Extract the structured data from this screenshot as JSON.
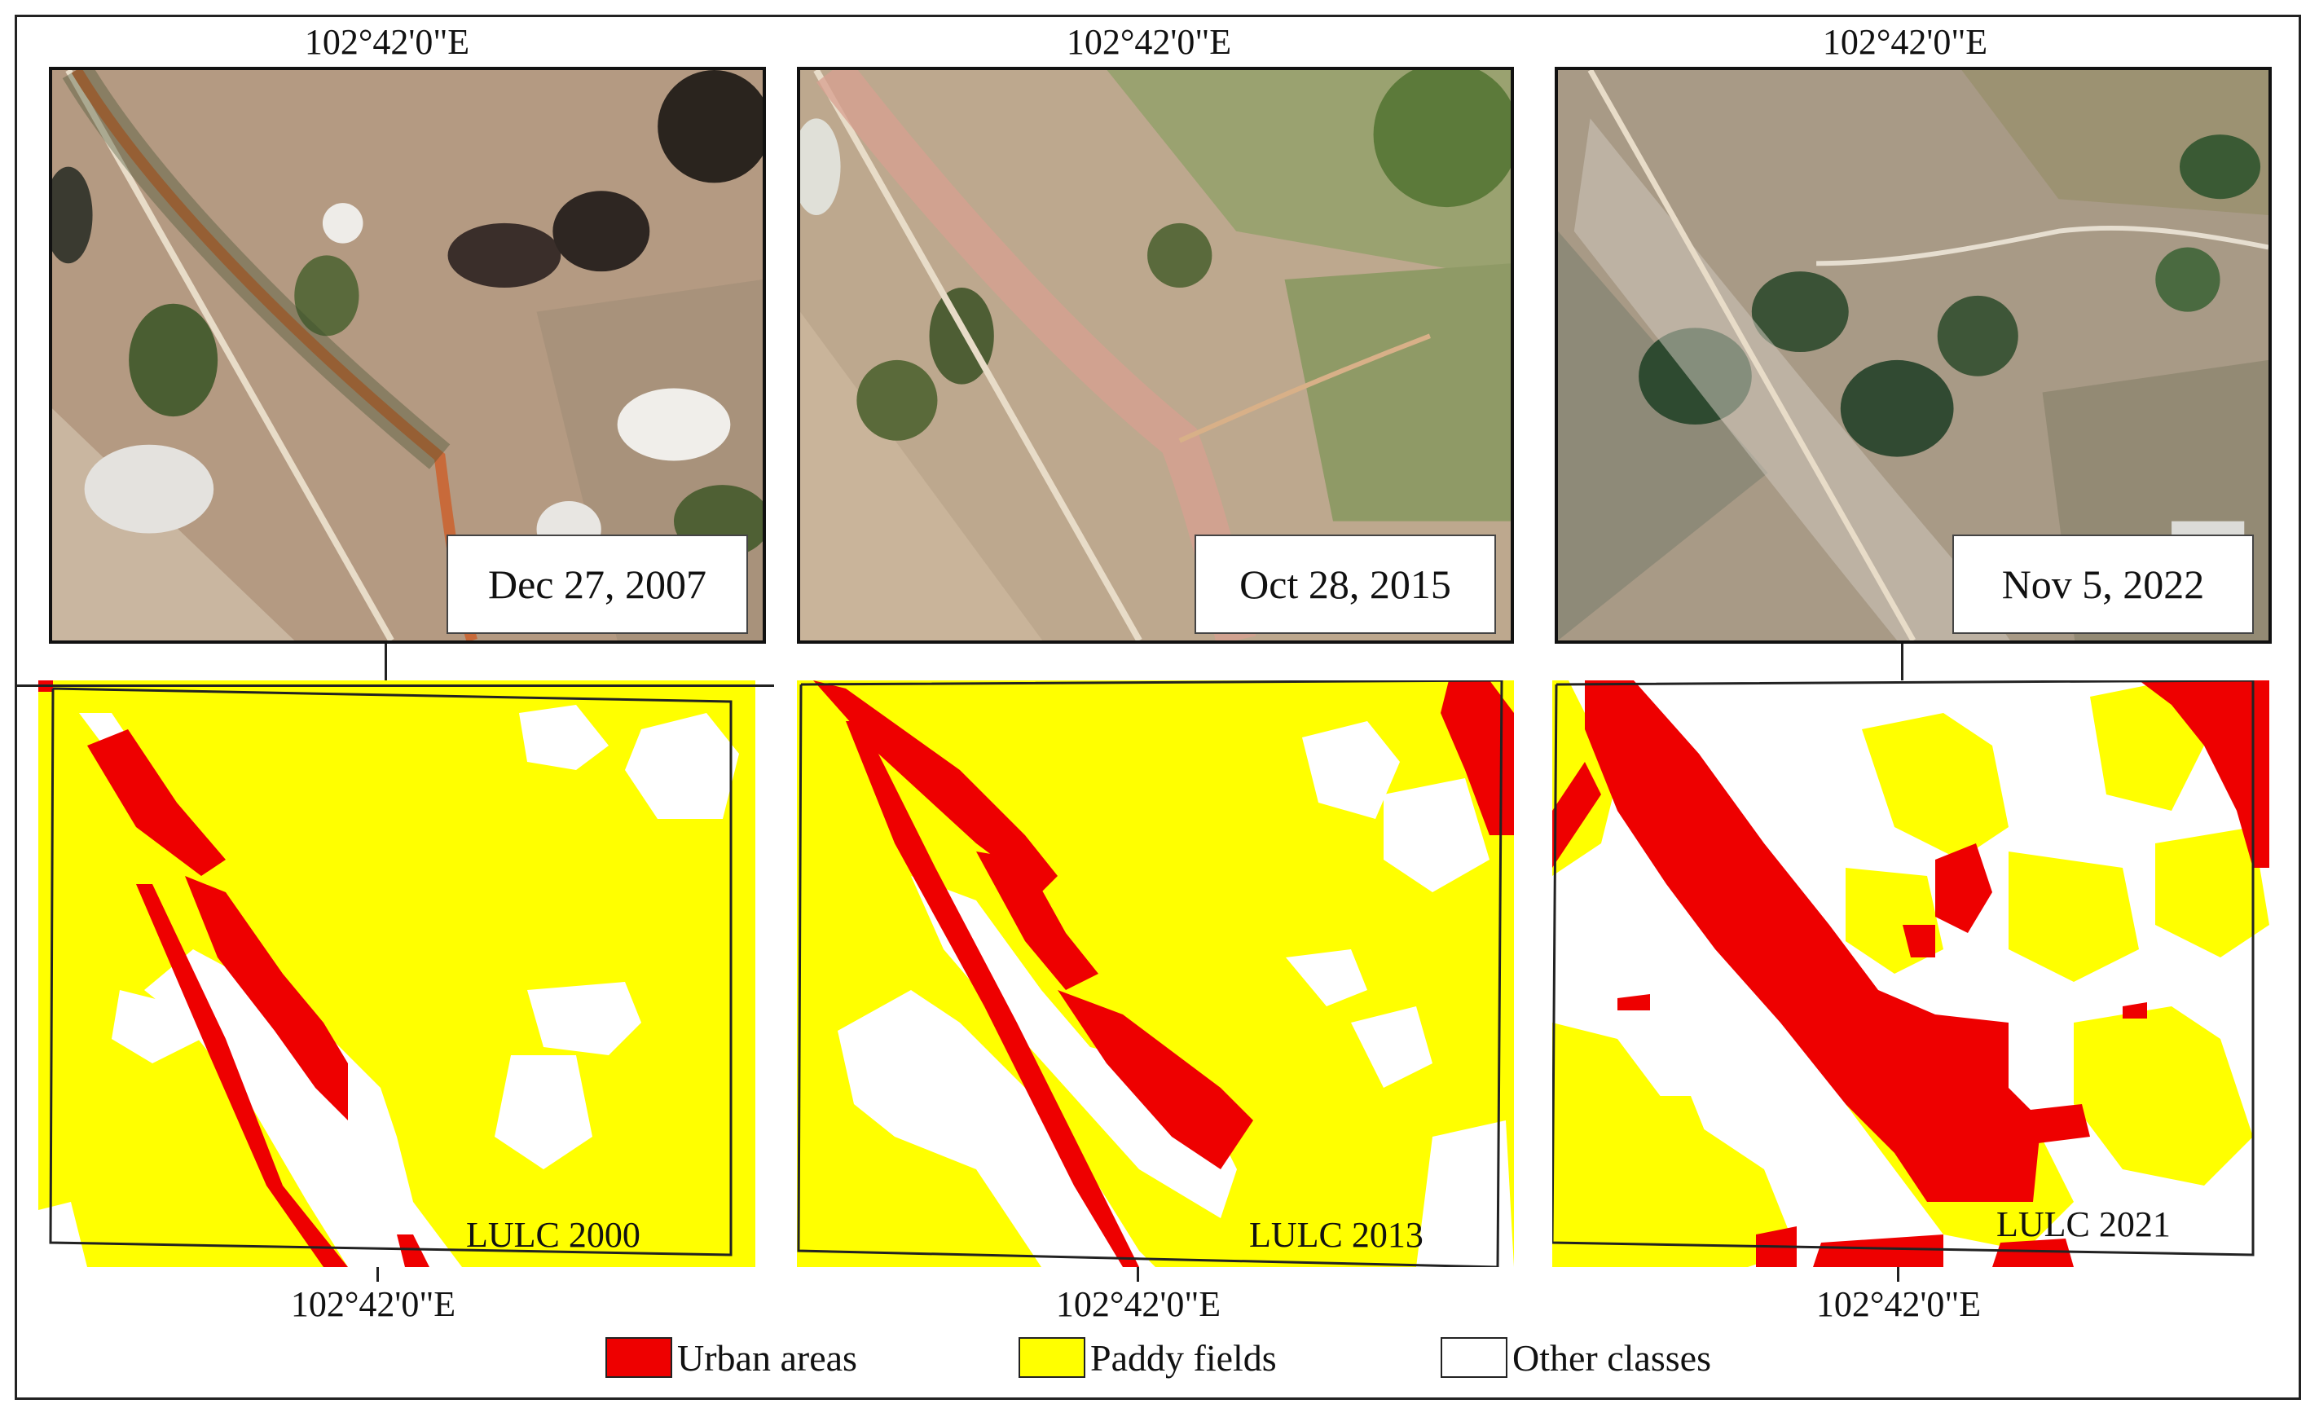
{
  "colors": {
    "urban": "#ee0000",
    "paddy": "#ffff00",
    "other": "#ffffff"
  },
  "panels": [
    {
      "coord_top": "102°42'0\"E",
      "date": "Dec 27, 2007",
      "lulc": "LULC 2000",
      "coord_bottom": "102°42'0\"E"
    },
    {
      "coord_top": "102°42'0\"E",
      "date": "Oct 28, 2015",
      "lulc": "LULC 2013",
      "coord_bottom": "102°42'0\"E"
    },
    {
      "coord_top": "102°42'0\"E",
      "date": "Nov 5, 2022",
      "lulc": "LULC 2021",
      "coord_bottom": "102°42'0\"E"
    }
  ],
  "legend": [
    {
      "label": "Urban areas",
      "color": "#ee0000"
    },
    {
      "label": "Paddy fields",
      "color": "#ffff00"
    },
    {
      "label": "Other classes",
      "color": "#ffffff"
    }
  ]
}
